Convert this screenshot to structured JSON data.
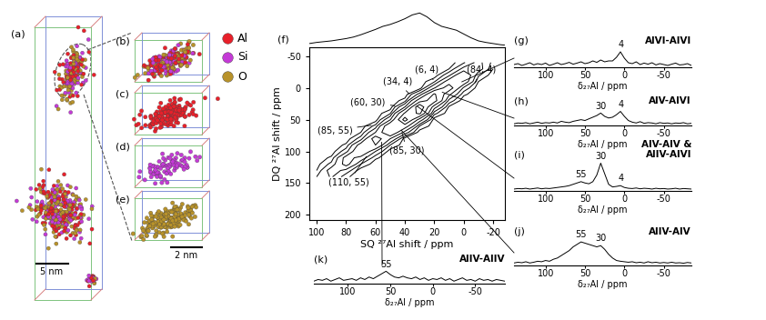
{
  "atom_probe": {
    "panels": [
      "(a)",
      "(b)",
      "(c)",
      "(d)",
      "(e)"
    ],
    "elements": [
      {
        "name": "Al",
        "color": "#e8202a"
      },
      {
        "name": "Si",
        "color": "#c43ad6"
      },
      {
        "name": "O",
        "color": "#b8922a"
      }
    ],
    "scale_bars": [
      "5 nm",
      "2 nm"
    ]
  },
  "chart_data": [
    {
      "type": "contour",
      "panel": "(f)",
      "xlabel": "SQ ²⁷Al shift / ppm",
      "ylabel": "DQ ²⁷Al shift / ppm",
      "xlim": [
        105,
        -28
      ],
      "ylim": [
        208,
        -64
      ],
      "xticks": [
        100,
        80,
        60,
        40,
        20,
        0,
        -20
      ],
      "yticks": [
        -50,
        0,
        50,
        100,
        150,
        200
      ],
      "sq": [
        100,
        90,
        80,
        70,
        60,
        50,
        40,
        30,
        20,
        10,
        0,
        -10,
        -20
      ],
      "dq": [
        -40,
        -30,
        -20,
        -10,
        0,
        10,
        20,
        30,
        40,
        50,
        60,
        70,
        80,
        90,
        100,
        110,
        120,
        130,
        140
      ],
      "cells": [
        [
          0,
          0,
          0,
          0,
          0,
          0,
          0,
          0,
          0,
          0,
          7,
          18,
          6
        ],
        [
          0,
          0,
          0,
          0,
          0,
          0,
          0,
          0,
          0,
          3,
          18,
          20,
          3
        ],
        [
          0,
          0,
          0,
          0,
          0,
          0,
          0,
          0,
          0,
          13,
          40,
          9,
          0
        ],
        [
          0,
          0,
          0,
          0,
          0,
          0,
          0,
          0,
          7,
          32,
          35,
          3,
          0
        ],
        [
          0,
          0,
          0,
          0,
          0,
          0,
          0,
          0,
          24,
          50,
          13,
          0,
          0
        ],
        [
          0,
          0,
          0,
          0,
          0,
          0,
          0,
          18,
          63,
          28,
          4,
          0,
          0
        ],
        [
          0,
          0,
          0,
          0,
          0,
          0,
          5,
          50,
          70,
          12,
          0,
          0,
          0
        ],
        [
          0,
          0,
          0,
          0,
          0,
          0,
          25,
          100,
          30,
          2,
          0,
          0,
          0
        ],
        [
          0,
          0,
          0,
          0,
          0,
          7,
          63,
          85,
          10,
          0,
          0,
          0,
          0
        ],
        [
          0,
          0,
          0,
          0,
          0,
          24,
          90,
          32,
          0,
          0,
          0,
          0,
          0
        ],
        [
          0,
          0,
          0,
          0,
          10,
          58,
          50,
          8,
          0,
          0,
          0,
          0,
          0
        ],
        [
          0,
          0,
          0,
          3,
          25,
          60,
          20,
          0,
          0,
          0,
          0,
          0,
          0
        ],
        [
          0,
          0,
          0,
          11,
          50,
          25,
          0,
          0,
          0,
          0,
          0,
          0,
          0
        ],
        [
          0,
          0,
          4,
          31,
          40,
          8,
          0,
          0,
          0,
          0,
          0,
          0,
          0
        ],
        [
          0,
          0,
          12,
          40,
          15,
          0,
          0,
          0,
          0,
          0,
          0,
          0,
          0
        ],
        [
          0,
          4,
          30,
          21,
          4,
          0,
          0,
          0,
          0,
          0,
          0,
          0,
          0
        ],
        [
          1,
          10,
          30,
          8,
          0,
          0,
          0,
          0,
          0,
          0,
          0,
          0,
          0
        ],
        [
          3,
          20,
          12,
          0,
          0,
          0,
          0,
          0,
          0,
          0,
          0,
          0,
          0
        ],
        [
          8,
          16,
          4,
          0,
          0,
          0,
          0,
          0,
          0,
          0,
          0,
          0,
          0
        ]
      ],
      "contour_levels": [
        3,
        8,
        15,
        25,
        40,
        60,
        80
      ],
      "color": "#000000",
      "annotations": [
        "(6, 4)",
        "(34, 4)",
        "(84, 4)",
        "(60, 30)",
        "(85, 55)",
        "(85, 30)",
        "(110, 55)"
      ],
      "projection": {
        "x": [
          140,
          135,
          130,
          125,
          120,
          115,
          110,
          105,
          100,
          95,
          90,
          85,
          80,
          75,
          70,
          65,
          60,
          55,
          50,
          45,
          40,
          35,
          30,
          25,
          20,
          15,
          10,
          5,
          0,
          -5,
          -10,
          -15,
          -20,
          -25,
          -30,
          -35,
          -40,
          -45,
          -50,
          -55,
          -60,
          -65,
          -70,
          -75,
          -80,
          -85
        ],
        "values": [
          0,
          0,
          0,
          0,
          0,
          0,
          0.02,
          0.05,
          0.08,
          0.1,
          0.12,
          0.15,
          0.18,
          0.22,
          0.28,
          0.35,
          0.42,
          0.5,
          0.55,
          0.62,
          0.7,
          0.8,
          0.85,
          0.75,
          0.6,
          0.5,
          0.45,
          0.4,
          0.3,
          0.2,
          0.12,
          0.08,
          0.05,
          0.02,
          0,
          0,
          0,
          0,
          0,
          0,
          0,
          0,
          0,
          0,
          0,
          0
        ],
        "ylim": [
          0,
          1
        ]
      }
    },
    {
      "type": "line",
      "x": [
        140,
        135,
        130,
        125,
        120,
        115,
        110,
        105,
        100,
        95,
        90,
        85,
        80,
        75,
        70,
        65,
        60,
        55,
        50,
        45,
        40,
        35,
        30,
        25,
        20,
        15,
        10,
        5,
        0,
        -5,
        -10,
        -15,
        -20,
        -25,
        -30,
        -35,
        -40,
        -45,
        -50,
        -55,
        -60,
        -65,
        -70,
        -75,
        -80,
        -85
      ],
      "xlim": [
        140,
        -85
      ],
      "xticks": [
        100,
        50,
        0,
        -50
      ],
      "xlabel": "δ₂₇Al / ppm",
      "ylim": [
        -0.05,
        1.05
      ],
      "tick_labels": "x",
      "color": "#000000",
      "series": [
        {
          "panel": "(g)",
          "name": "AlVI-AlVI",
          "peak_labels": [
            4
          ],
          "values": [
            0.1,
            0.15,
            0.05,
            0.12,
            0.2,
            0.08,
            0.15,
            0.1,
            0.18,
            0.05,
            0.12,
            0.2,
            0.1,
            0.15,
            0.22,
            0.12,
            0.18,
            0.25,
            0.15,
            0.2,
            0.3,
            0.22,
            0.35,
            0.25,
            0.3,
            0.3,
            0.5,
            0.8,
            0.45,
            0.2,
            0.15,
            0.25,
            0.1,
            0.18,
            0.12,
            0.2,
            0.08,
            0.15,
            0.1,
            0.05,
            0.12,
            0.18,
            0.08,
            0.1,
            0.15,
            0.05
          ]
        },
        {
          "panel": "(h)",
          "name": "AlV-AlVI",
          "peak_labels": [
            30,
            4
          ],
          "values": [
            0.05,
            0.1,
            0.08,
            0.12,
            0.05,
            0.1,
            0.15,
            0.08,
            0.12,
            0.1,
            0.15,
            0.1,
            0.2,
            0.15,
            0.12,
            0.2,
            0.25,
            0.3,
            0.25,
            0.35,
            0.45,
            0.55,
            0.7,
            0.5,
            0.4,
            0.45,
            0.6,
            0.8,
            0.5,
            0.25,
            0.15,
            0.1,
            0.18,
            0.08,
            0.12,
            0.1,
            0.05,
            0.12,
            0.08,
            0.1,
            0.05,
            0.1,
            0.08,
            0.12,
            0.05,
            0.08
          ]
        },
        {
          "panel": "(i)",
          "name": "AlV-AlV &\nAlIV-AlVI",
          "peak_labels": [
            55,
            30,
            4
          ],
          "values": [
            0.02,
            0.04,
            0.03,
            0.05,
            0.02,
            0.04,
            0.06,
            0.03,
            0.05,
            0.04,
            0.06,
            0.08,
            0.1,
            0.12,
            0.15,
            0.2,
            0.25,
            0.3,
            0.25,
            0.22,
            0.3,
            0.55,
            1.0,
            0.6,
            0.2,
            0.1,
            0.12,
            0.15,
            0.08,
            0.05,
            0.04,
            0.06,
            0.03,
            0.05,
            0.04,
            0.02,
            0.05,
            0.03,
            0.04,
            0.02,
            0.03,
            0.05,
            0.02,
            0.04,
            0.03,
            0.02
          ]
        },
        {
          "panel": "(j)",
          "name": "AlIV-AlV",
          "peak_labels": [
            55,
            30
          ],
          "values": [
            0.05,
            0.08,
            0.06,
            0.1,
            0.05,
            0.08,
            0.12,
            0.1,
            0.15,
            0.12,
            0.2,
            0.25,
            0.35,
            0.45,
            0.55,
            0.7,
            0.8,
            0.9,
            0.85,
            0.8,
            0.75,
            0.7,
            0.75,
            0.6,
            0.4,
            0.25,
            0.15,
            0.12,
            0.1,
            0.08,
            0.1,
            0.06,
            0.08,
            0.05,
            0.1,
            0.06,
            0.08,
            0.05,
            0.07,
            0.05,
            0.08,
            0.05,
            0.06,
            0.04,
            0.07,
            0.05
          ]
        },
        {
          "panel": "(k)",
          "name": "AlIV-AlIV",
          "peak_labels": [
            55
          ],
          "values": [
            0.1,
            0.2,
            0.15,
            0.25,
            0.1,
            0.2,
            0.3,
            0.15,
            0.2,
            0.25,
            0.15,
            0.3,
            0.2,
            0.35,
            0.25,
            0.4,
            0.55,
            0.7,
            0.5,
            0.35,
            0.3,
            0.4,
            0.3,
            0.25,
            0.35,
            0.2,
            0.3,
            0.15,
            0.25,
            0.2,
            0.3,
            0.15,
            0.25,
            0.1,
            0.2,
            0.3,
            0.15,
            0.2,
            0.1,
            0.25,
            0.15,
            0.2,
            0.1,
            0.2,
            0.15,
            0.1
          ]
        }
      ]
    }
  ]
}
